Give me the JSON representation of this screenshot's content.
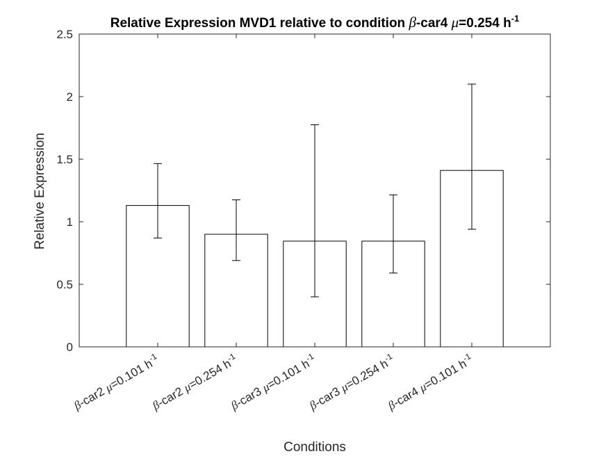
{
  "chart_data": {
    "type": "bar",
    "title": {
      "prefix": "Relative Expression MVD1 relative to condition ",
      "beta": "β",
      "after_beta": "-car4 ",
      "mu": "μ",
      "after_mu": "=0.254 h",
      "superscript": "-1"
    },
    "xlabel": "Conditions",
    "ylabel": "Relative Expression",
    "ylim": [
      0,
      2.5
    ],
    "yticks": [
      "0",
      "0.5",
      "1",
      "1.5",
      "2",
      "2.5"
    ],
    "grid": false,
    "categories": [
      {
        "beta": "β",
        "name": "-car2 ",
        "mu": "μ",
        "rate": "=0.101 h",
        "sup": "-1"
      },
      {
        "beta": "β",
        "name": "-car2 ",
        "mu": "μ",
        "rate": "=0.254 h",
        "sup": "-1"
      },
      {
        "beta": "β",
        "name": "-car3 ",
        "mu": "μ",
        "rate": "=0.101 h",
        "sup": "-1"
      },
      {
        "beta": "β",
        "name": "-car3 ",
        "mu": "μ",
        "rate": "=0.254 h",
        "sup": "-1"
      },
      {
        "beta": "β",
        "name": "-car4 ",
        "mu": "μ",
        "rate": "=0.101 h",
        "sup": "-1"
      }
    ],
    "values": [
      1.13,
      0.9,
      0.845,
      0.845,
      1.41
    ],
    "error_low": [
      0.87,
      0.69,
      0.4,
      0.59,
      0.94
    ],
    "error_high": [
      1.465,
      1.175,
      1.775,
      1.215,
      2.1
    ],
    "colors": {
      "bar_fill": "#ffffff",
      "bar_edge": "#000000",
      "axis": "#262626",
      "error": "#000000"
    }
  }
}
